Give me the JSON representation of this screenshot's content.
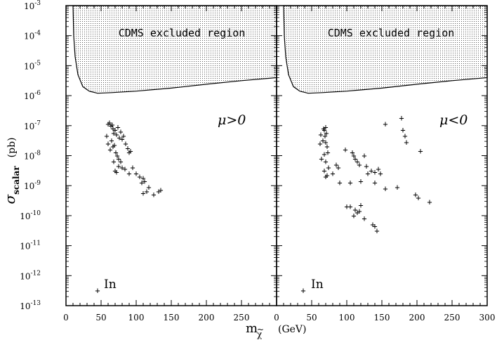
{
  "chart_data": {
    "type": "scatter",
    "ylabel": {
      "symbol": "σ",
      "sub": "scalar",
      "unit": "(pb)"
    },
    "xlabel": {
      "symbol": "m",
      "sub": "χ",
      "tilde": "~",
      "unit": "(GeV)"
    },
    "xlim": [
      0,
      300
    ],
    "ylim_exponents": [
      -13,
      -3
    ],
    "x_ticks": [
      "0",
      "50",
      "100",
      "150",
      "200",
      "250"
    ],
    "x_ticks_right": [
      "0",
      "50",
      "100",
      "150",
      "200",
      "250",
      "300"
    ],
    "y_tick_base": "10",
    "y_tick_exponents": [
      "-13",
      "-12",
      "-11",
      "-10",
      "-9",
      "-8",
      "-7",
      "-6",
      "-5",
      "-4",
      "-3"
    ],
    "panels": [
      {
        "label": "μ>0",
        "region_label": "CDMS excluded region",
        "in_label": "In",
        "excluded_boundary": [
          [
            10,
            -3
          ],
          [
            11,
            -4
          ],
          [
            13,
            -4.7
          ],
          [
            17,
            -5.3
          ],
          [
            24,
            -5.7
          ],
          [
            33,
            -5.85
          ],
          [
            45,
            -5.92
          ],
          [
            65,
            -5.9
          ],
          [
            100,
            -5.85
          ],
          [
            150,
            -5.75
          ],
          [
            200,
            -5.62
          ],
          [
            250,
            -5.5
          ],
          [
            300,
            -5.4
          ]
        ],
        "points": [
          [
            60,
            -6.95
          ],
          [
            62,
            -6.9
          ],
          [
            64,
            -7.0
          ],
          [
            66,
            -6.97
          ],
          [
            67,
            -7.1
          ],
          [
            68,
            -7.25
          ],
          [
            70,
            -7.15
          ],
          [
            72,
            -7.3
          ],
          [
            74,
            -7.05
          ],
          [
            76,
            -7.4
          ],
          [
            78,
            -7.2
          ],
          [
            80,
            -7.45
          ],
          [
            82,
            -7.35
          ],
          [
            85,
            -7.6
          ],
          [
            88,
            -7.75
          ],
          [
            90,
            -7.9
          ],
          [
            92,
            -7.85
          ],
          [
            58,
            -7.35
          ],
          [
            60,
            -7.6
          ],
          [
            63,
            -7.8
          ],
          [
            65,
            -7.5
          ],
          [
            67,
            -7.7
          ],
          [
            69,
            -7.65
          ],
          [
            71,
            -7.9
          ],
          [
            73,
            -8.0
          ],
          [
            75,
            -8.1
          ],
          [
            78,
            -8.2
          ],
          [
            68,
            -8.2
          ],
          [
            70,
            -8.5
          ],
          [
            72,
            -8.55
          ],
          [
            75,
            -8.35
          ],
          [
            80,
            -8.4
          ],
          [
            84,
            -8.45
          ],
          [
            90,
            -8.6
          ],
          [
            95,
            -8.4
          ],
          [
            100,
            -8.6
          ],
          [
            105,
            -8.7
          ],
          [
            108,
            -8.9
          ],
          [
            110,
            -8.75
          ],
          [
            112,
            -8.85
          ],
          [
            115,
            -9.2
          ],
          [
            118,
            -9.05
          ],
          [
            125,
            -9.3
          ],
          [
            132,
            -9.2
          ],
          [
            135,
            -9.15
          ],
          [
            110,
            -9.25
          ],
          [
            45,
            -12.5
          ]
        ]
      },
      {
        "label": "μ<0",
        "region_label": "CDMS excluded region",
        "in_label": "In",
        "excluded_boundary": [
          [
            10,
            -3
          ],
          [
            11,
            -4
          ],
          [
            13,
            -4.7
          ],
          [
            17,
            -5.3
          ],
          [
            24,
            -5.7
          ],
          [
            33,
            -5.85
          ],
          [
            45,
            -5.92
          ],
          [
            65,
            -5.9
          ],
          [
            100,
            -5.85
          ],
          [
            150,
            -5.75
          ],
          [
            200,
            -5.62
          ],
          [
            250,
            -5.5
          ],
          [
            300,
            -5.4
          ]
        ],
        "points": [
          [
            67,
            -7.1
          ],
          [
            68,
            -7.15
          ],
          [
            70,
            -7.05
          ],
          [
            71,
            -7.25
          ],
          [
            69,
            -7.35
          ],
          [
            66,
            -7.5
          ],
          [
            63,
            -7.3
          ],
          [
            62,
            -7.6
          ],
          [
            70,
            -7.55
          ],
          [
            72,
            -7.7
          ],
          [
            73,
            -7.9
          ],
          [
            68,
            -7.95
          ],
          [
            64,
            -8.1
          ],
          [
            70,
            -8.2
          ],
          [
            74,
            -8.4
          ],
          [
            68,
            -8.5
          ],
          [
            70,
            -8.7
          ],
          [
            72,
            -8.65
          ],
          [
            80,
            -8.6
          ],
          [
            85,
            -8.3
          ],
          [
            90,
            -8.9
          ],
          [
            88,
            -8.4
          ],
          [
            98,
            -7.8
          ],
          [
            108,
            -7.9
          ],
          [
            110,
            -8.0
          ],
          [
            112,
            -8.1
          ],
          [
            115,
            -8.2
          ],
          [
            118,
            -8.3
          ],
          [
            125,
            -8.0
          ],
          [
            128,
            -8.35
          ],
          [
            135,
            -8.5
          ],
          [
            140,
            -8.55
          ],
          [
            145,
            -8.45
          ],
          [
            148,
            -8.6
          ],
          [
            140,
            -8.9
          ],
          [
            130,
            -8.6
          ],
          [
            120,
            -8.85
          ],
          [
            105,
            -8.9
          ],
          [
            155,
            -6.95
          ],
          [
            178,
            -6.75
          ],
          [
            180,
            -7.15
          ],
          [
            183,
            -7.35
          ],
          [
            185,
            -7.55
          ],
          [
            205,
            -7.85
          ],
          [
            172,
            -9.05
          ],
          [
            155,
            -9.1
          ],
          [
            198,
            -9.3
          ],
          [
            202,
            -9.4
          ],
          [
            218,
            -9.55
          ],
          [
            100,
            -9.7
          ],
          [
            105,
            -9.7
          ],
          [
            112,
            -9.8
          ],
          [
            115,
            -9.9
          ],
          [
            118,
            -9.85
          ],
          [
            120,
            -9.65
          ],
          [
            110,
            -10.0
          ],
          [
            125,
            -10.1
          ],
          [
            137,
            -10.3
          ],
          [
            140,
            -10.35
          ],
          [
            143,
            -10.5
          ],
          [
            38,
            -12.5
          ]
        ]
      }
    ]
  }
}
